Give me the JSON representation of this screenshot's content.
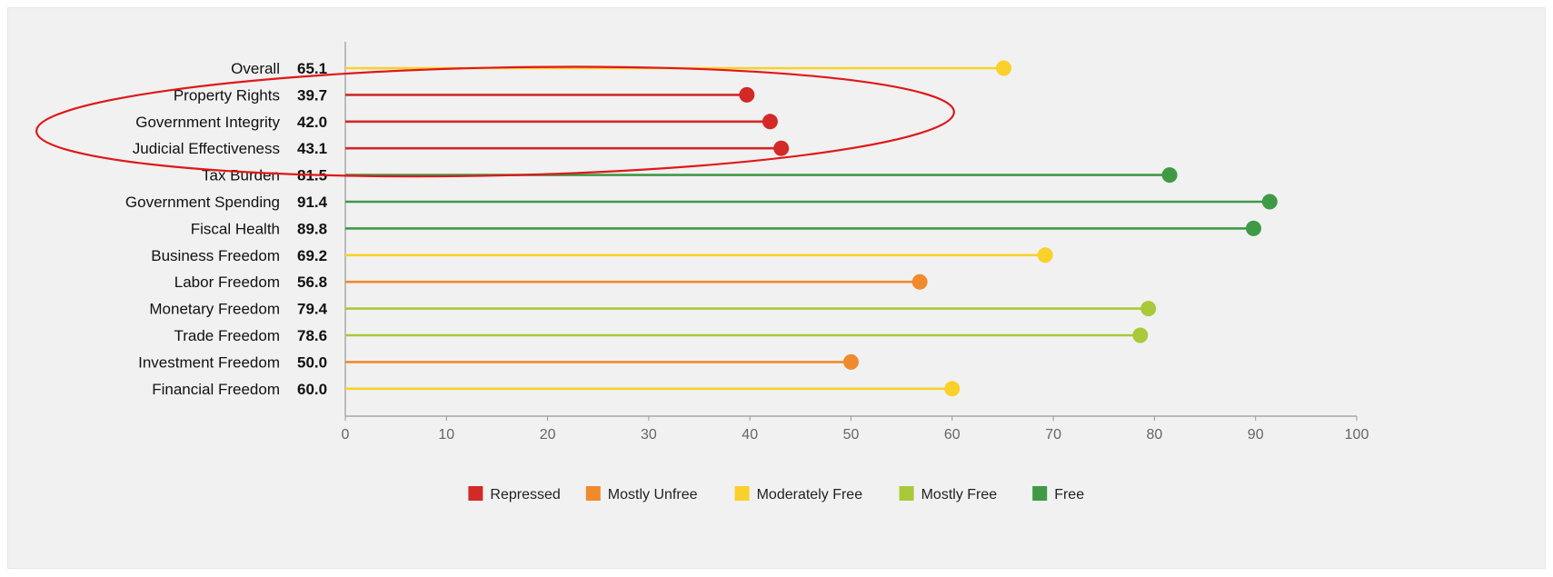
{
  "chart_data": {
    "type": "lollipop",
    "categories": [
      "Overall",
      "Property Rights",
      "Government Integrity",
      "Judicial Effectiveness",
      "Tax Burden",
      "Government Spending",
      "Fiscal Health",
      "Business Freedom",
      "Labor Freedom",
      "Monetary Freedom",
      "Trade Freedom",
      "Investment Freedom",
      "Financial Freedom"
    ],
    "values": [
      65.1,
      39.7,
      42.0,
      43.1,
      81.5,
      91.4,
      89.8,
      69.2,
      56.8,
      79.4,
      78.6,
      50.0,
      60.0
    ],
    "value_labels": [
      "65.1",
      "39.7",
      "42.0",
      "43.1",
      "81.5",
      "91.4",
      "89.8",
      "69.2",
      "56.8",
      "79.4",
      "78.6",
      "50.0",
      "60.0"
    ],
    "classes": [
      "Moderately Free",
      "Repressed",
      "Repressed",
      "Repressed",
      "Free",
      "Free",
      "Free",
      "Moderately Free",
      "Mostly Unfree",
      "Mostly Free",
      "Mostly Free",
      "Mostly Unfree",
      "Moderately Free"
    ],
    "xlim": [
      0,
      100
    ],
    "xticks": [
      0,
      10,
      20,
      30,
      40,
      50,
      60,
      70,
      80,
      90,
      100
    ],
    "grid": false,
    "legend": {
      "placement": "bottom-center",
      "entries": [
        {
          "name": "Repressed",
          "color": "#d12a27"
        },
        {
          "name": "Mostly Unfree",
          "color": "#f08a2c"
        },
        {
          "name": "Moderately Free",
          "color": "#f9d12a"
        },
        {
          "name": "Mostly Free",
          "color": "#a9c93a"
        },
        {
          "name": "Free",
          "color": "#3f9a45"
        }
      ]
    },
    "annotation": {
      "type": "ellipse",
      "color": "#e01818",
      "highlighted": [
        "Property Rights",
        "Government Integrity",
        "Judicial Effectiveness"
      ]
    }
  }
}
